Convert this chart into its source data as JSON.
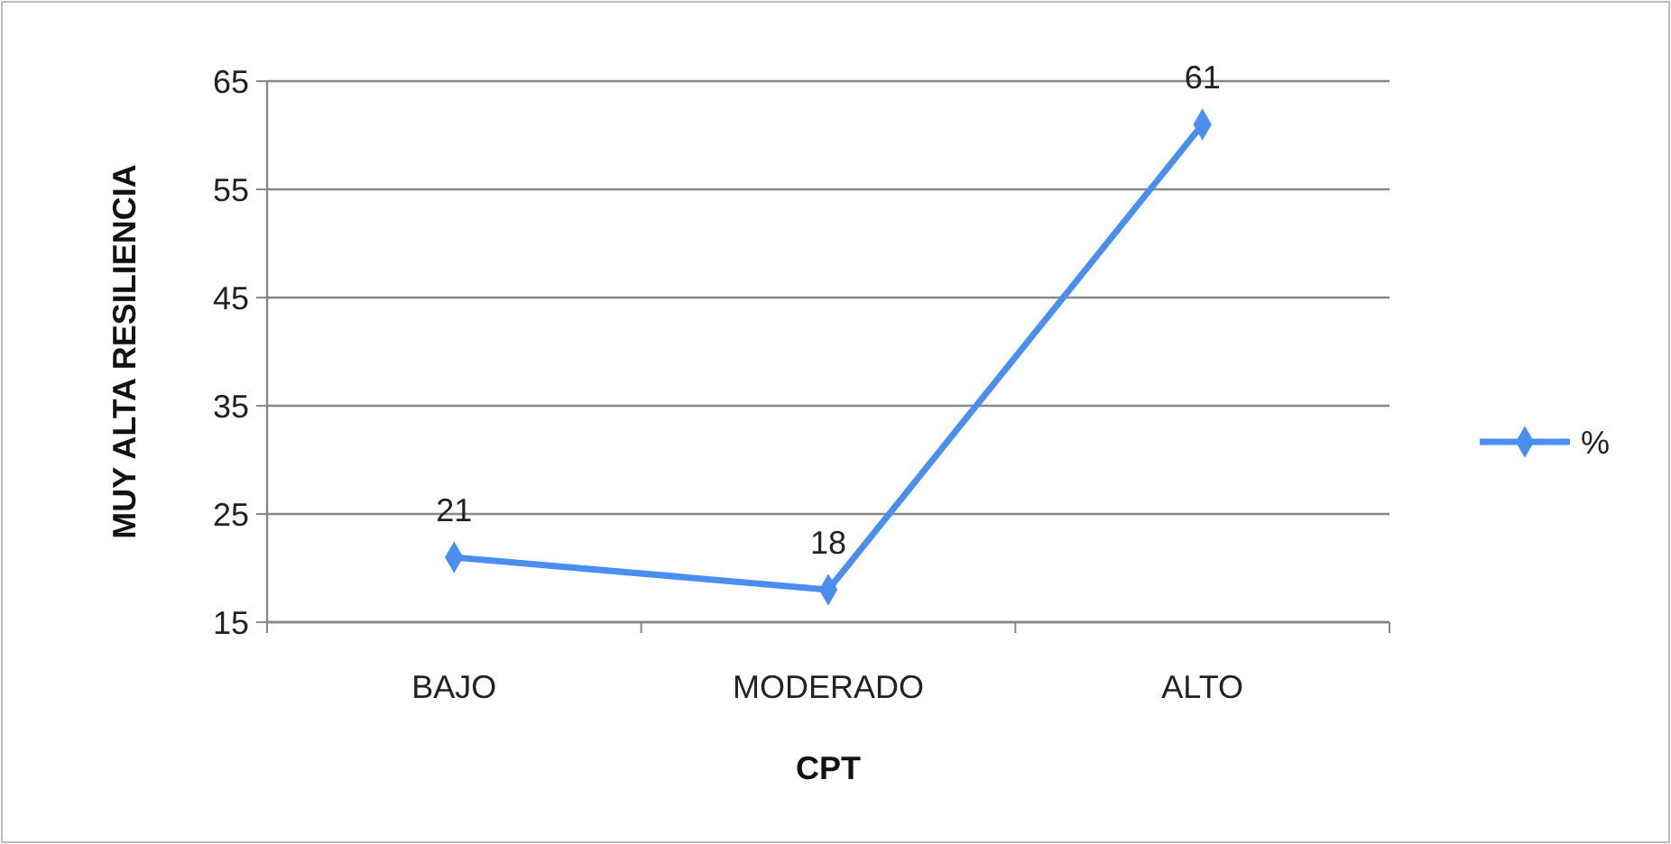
{
  "chart_data": {
    "type": "line",
    "xlabel": "CPT",
    "ylabel": "MUY ALTA RESILIENCIA",
    "categories": [
      "BAJO",
      "MODERADO",
      "ALTO"
    ],
    "series": [
      {
        "name": "%",
        "color": "#4a8ef0",
        "values": [
          21,
          18,
          61
        ]
      }
    ],
    "ylim": [
      15,
      65
    ],
    "yticks": [
      15,
      25,
      35,
      45,
      55,
      65
    ],
    "grid": "y",
    "legend": "right",
    "marker": "diamond",
    "data_labels": true
  }
}
